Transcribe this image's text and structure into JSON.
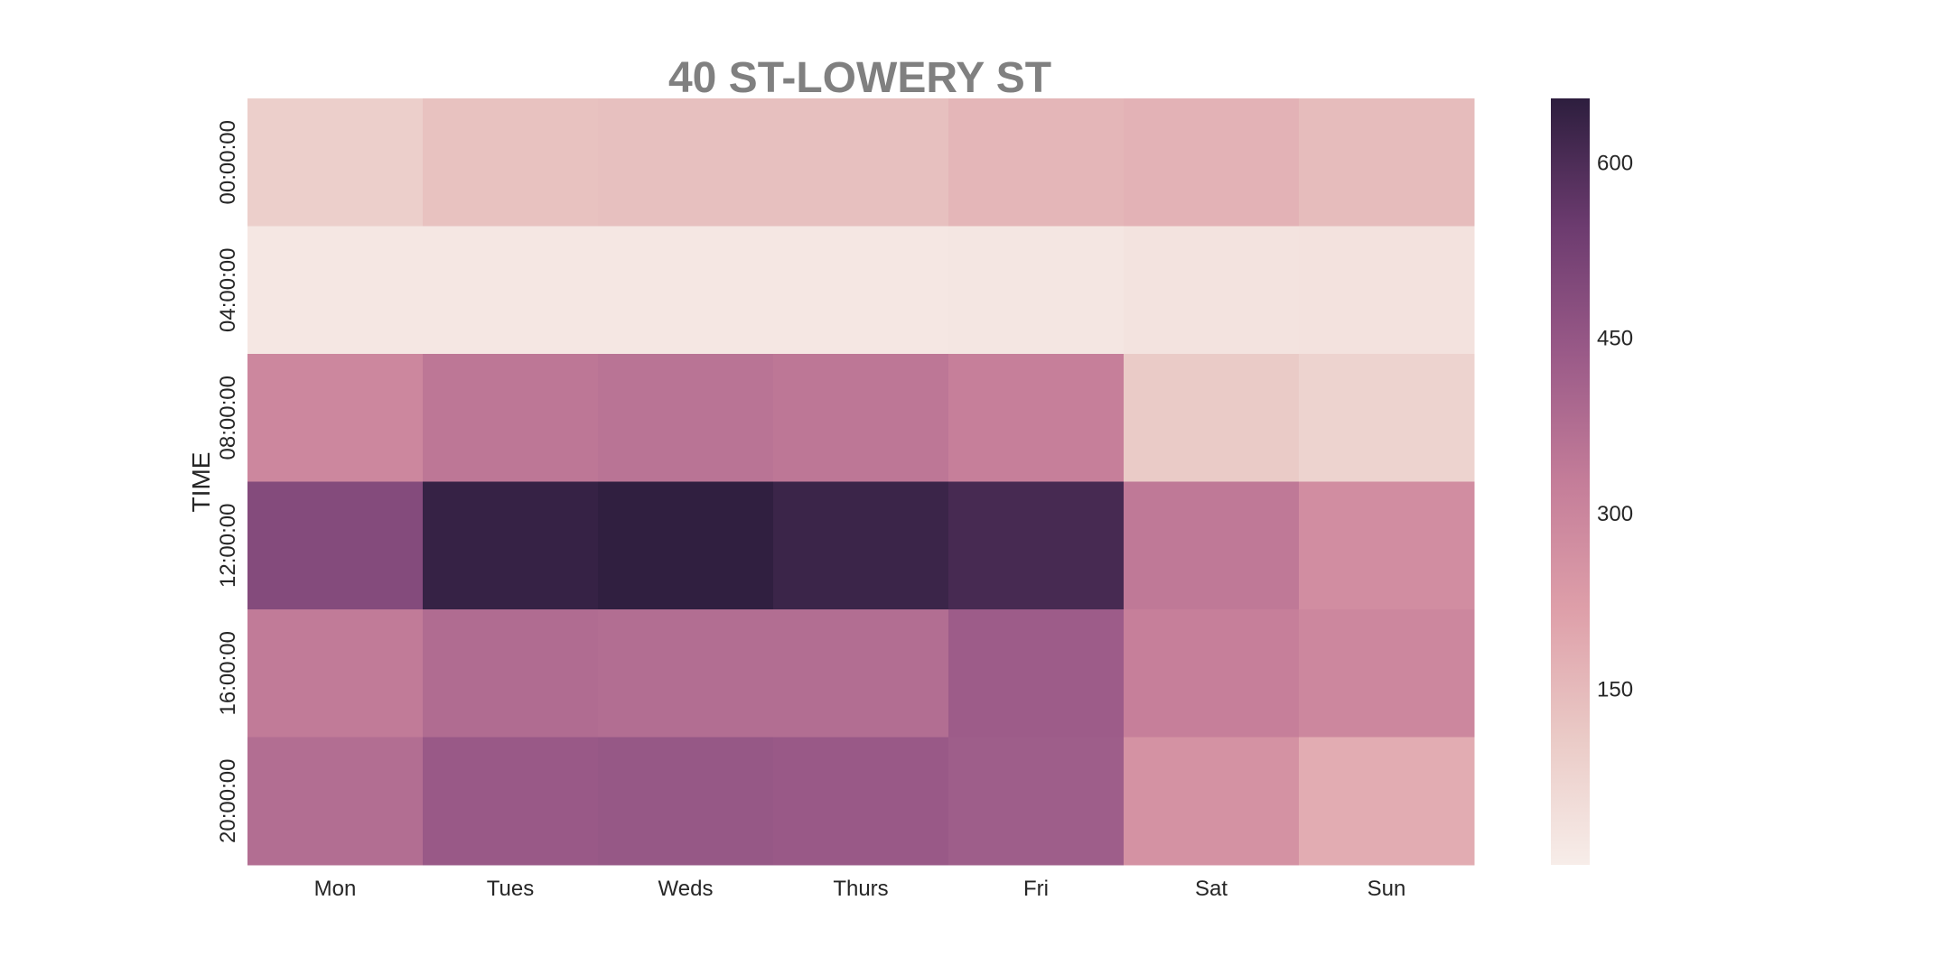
{
  "chart_data": {
    "type": "heatmap",
    "title": "40 ST-LOWERY ST",
    "xlabel": "",
    "ylabel": "TIME",
    "x_categories": [
      "Mon",
      "Tues",
      "Weds",
      "Thurs",
      "Fri",
      "Sat",
      "Sun"
    ],
    "y_categories": [
      "00:00:00",
      "04:00:00",
      "08:00:00",
      "12:00:00",
      "16:00:00",
      "20:00:00"
    ],
    "values": [
      [
        95,
        130,
        135,
        135,
        160,
        170,
        145
      ],
      [
        20,
        20,
        20,
        20,
        22,
        30,
        35
      ],
      [
        295,
        345,
        355,
        345,
        320,
        105,
        80
      ],
      [
        490,
        640,
        650,
        630,
        610,
        340,
        275
      ],
      [
        335,
        380,
        375,
        375,
        430,
        320,
        295
      ],
      [
        375,
        440,
        445,
        440,
        425,
        260,
        185
      ]
    ],
    "colorbar": {
      "min": 0,
      "max": 655,
      "ticks": [
        150,
        300,
        450,
        600
      ],
      "colormap": [
        "#f7ede9",
        "#eacac6",
        "#de9fa9",
        "#c47d99",
        "#9a5a88",
        "#6c3b6f",
        "#2d1e3e"
      ]
    }
  }
}
